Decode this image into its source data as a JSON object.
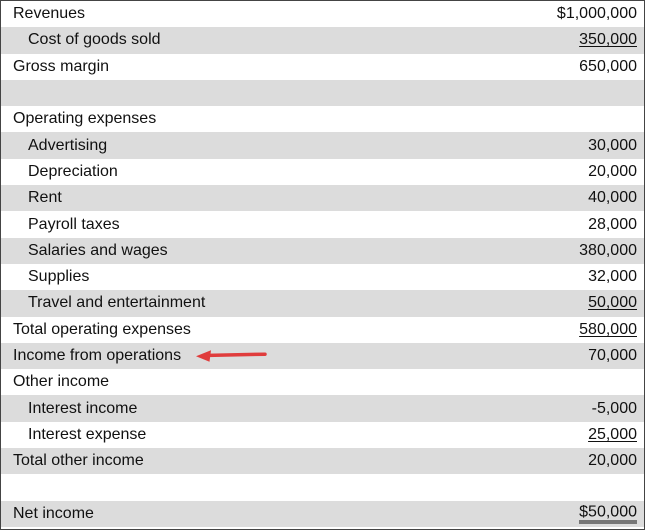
{
  "statement": {
    "rows": [
      {
        "label": "Revenues",
        "amount": "$1,000,000"
      },
      {
        "label": "Cost of goods sold",
        "amount": "350,000"
      },
      {
        "label": "Gross margin",
        "amount": "650,000"
      },
      {
        "label": "",
        "amount": ""
      },
      {
        "label": "Operating expenses",
        "amount": ""
      },
      {
        "label": "Advertising",
        "amount": "30,000"
      },
      {
        "label": "Depreciation",
        "amount": "20,000"
      },
      {
        "label": "Rent",
        "amount": "40,000"
      },
      {
        "label": "Payroll taxes",
        "amount": "28,000"
      },
      {
        "label": "Salaries and wages",
        "amount": "380,000"
      },
      {
        "label": "Supplies",
        "amount": "32,000"
      },
      {
        "label": "Travel and entertainment",
        "amount": "50,000"
      },
      {
        "label": "Total operating expenses",
        "amount": "580,000"
      },
      {
        "label": "Income from operations",
        "amount": "70,000"
      },
      {
        "label": "Other income",
        "amount": ""
      },
      {
        "label": "Interest income",
        "amount": "-5,000"
      },
      {
        "label": "Interest expense",
        "amount": "25,000"
      },
      {
        "label": "Total other income",
        "amount": "20,000"
      },
      {
        "label": "",
        "amount": ""
      },
      {
        "label": "Net income",
        "amount": "$50,000"
      }
    ]
  },
  "colors": {
    "shade": "#dcdcdc",
    "arrow": "#e03c3c"
  },
  "annotation": {
    "icon": "arrow-left-icon"
  }
}
